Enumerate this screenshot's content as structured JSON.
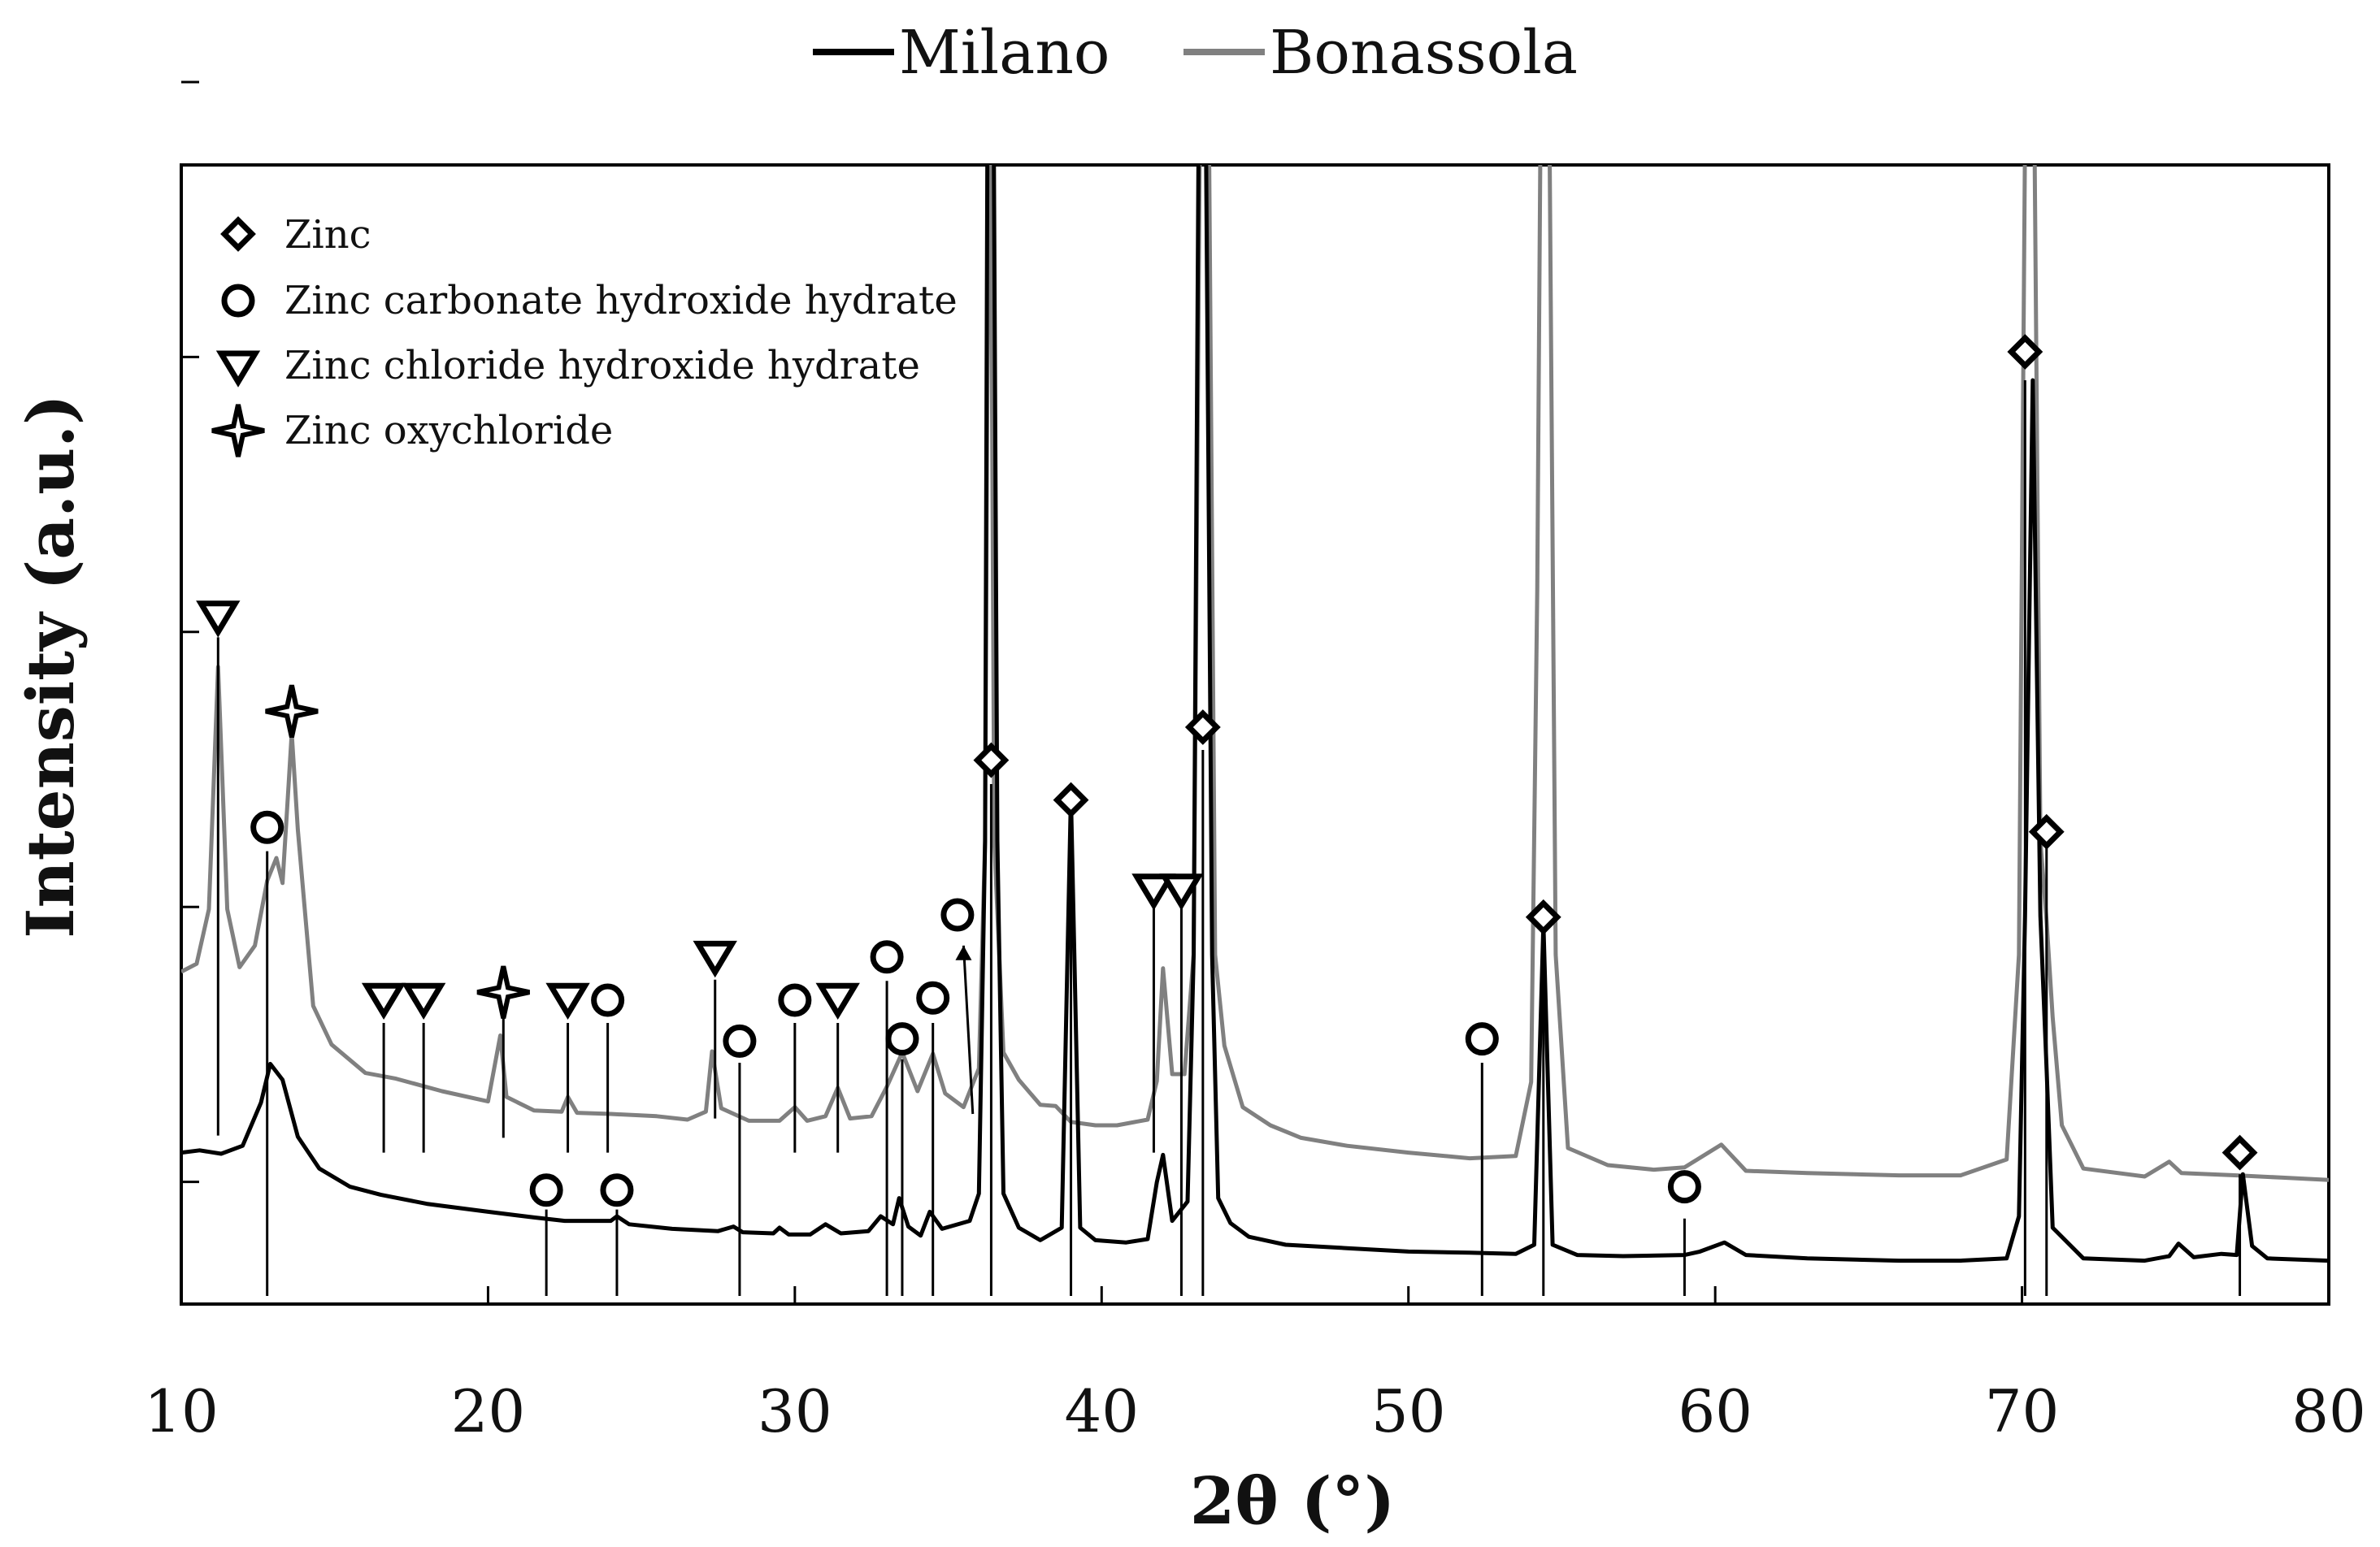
{
  "chart_data": {
    "type": "line",
    "title": "",
    "xlabel": "2θ (°)",
    "ylabel": "Intensity (a.u.)",
    "xlim": [
      10,
      80
    ],
    "ylim": [
      0,
      100
    ],
    "xticks": [
      10,
      20,
      30,
      40,
      50,
      60,
      70,
      80
    ],
    "series_legend": {
      "position": "top-center"
    },
    "series": [
      {
        "name": "Milano",
        "color": "#000000",
        "points": [
          [
            10,
            12.6
          ],
          [
            10.6,
            12.8
          ],
          [
            11.3,
            12.5
          ],
          [
            12.0,
            13.2
          ],
          [
            12.6,
            17
          ],
          [
            12.9,
            20.4
          ],
          [
            13.3,
            19
          ],
          [
            13.8,
            14
          ],
          [
            14.5,
            11.2
          ],
          [
            15.5,
            9.6
          ],
          [
            16.5,
            8.9
          ],
          [
            18,
            8.1
          ],
          [
            20,
            7.4
          ],
          [
            21.5,
            6.9
          ],
          [
            22.5,
            6.6
          ],
          [
            24,
            6.6
          ],
          [
            24.2,
            7.0
          ],
          [
            24.6,
            6.3
          ],
          [
            26,
            5.9
          ],
          [
            27.5,
            5.7
          ],
          [
            28,
            6.1
          ],
          [
            28.3,
            5.6
          ],
          [
            29.3,
            5.5
          ],
          [
            29.5,
            6.0
          ],
          [
            29.8,
            5.4
          ],
          [
            30.5,
            5.4
          ],
          [
            31,
            6.3
          ],
          [
            31.5,
            5.5
          ],
          [
            32.4,
            5.7
          ],
          [
            32.8,
            7.0
          ],
          [
            33.2,
            6.3
          ],
          [
            33.4,
            8.6
          ],
          [
            33.7,
            6.1
          ],
          [
            34.1,
            5.3
          ],
          [
            34.4,
            7.4
          ],
          [
            34.8,
            5.9
          ],
          [
            35.7,
            6.6
          ],
          [
            36.0,
            9
          ],
          [
            36.2,
            40
          ],
          [
            36.3,
            120
          ],
          [
            36.45,
            120
          ],
          [
            36.6,
            40
          ],
          [
            36.8,
            9
          ],
          [
            37.3,
            6.0
          ],
          [
            38.0,
            4.9
          ],
          [
            38.7,
            6.0
          ],
          [
            39.0,
            44.0
          ],
          [
            39.3,
            6.0
          ],
          [
            39.8,
            4.9
          ],
          [
            40.8,
            4.7
          ],
          [
            41.5,
            5.0
          ],
          [
            41.8,
            10.0
          ],
          [
            42.0,
            12.4
          ],
          [
            42.3,
            6.6
          ],
          [
            42.8,
            8.3
          ],
          [
            43.0,
            30
          ],
          [
            43.2,
            120
          ],
          [
            43.35,
            120
          ],
          [
            43.6,
            30
          ],
          [
            43.8,
            8.6
          ],
          [
            44.2,
            6.4
          ],
          [
            44.8,
            5.2
          ],
          [
            46,
            4.5
          ],
          [
            48,
            4.2
          ],
          [
            50,
            3.9
          ],
          [
            52,
            3.8
          ],
          [
            53.5,
            3.7
          ],
          [
            54.1,
            4.5
          ],
          [
            54.4,
            32.7
          ],
          [
            54.7,
            4.5
          ],
          [
            55.5,
            3.6
          ],
          [
            57,
            3.5
          ],
          [
            59,
            3.6
          ],
          [
            59.5,
            3.9
          ],
          [
            60.3,
            4.7
          ],
          [
            61,
            3.6
          ],
          [
            63,
            3.3
          ],
          [
            66,
            3.1
          ],
          [
            68,
            3.1
          ],
          [
            69.5,
            3.3
          ],
          [
            69.9,
            7
          ],
          [
            70.1,
            33.4
          ],
          [
            70.35,
            80.5
          ],
          [
            70.6,
            33.4
          ],
          [
            70.8,
            20
          ],
          [
            71.0,
            6
          ],
          [
            72,
            3.3
          ],
          [
            74,
            3.1
          ],
          [
            74.8,
            3.5
          ],
          [
            75.1,
            4.6
          ],
          [
            75.6,
            3.4
          ],
          [
            76.5,
            3.7
          ],
          [
            77.0,
            3.6
          ],
          [
            77.2,
            10.7
          ],
          [
            77.5,
            4.4
          ],
          [
            78,
            3.3
          ],
          [
            80,
            3.1
          ]
        ]
      },
      {
        "name": "Bonassola",
        "color": "#808080",
        "points": [
          [
            10,
            28.5
          ],
          [
            10.5,
            29.2
          ],
          [
            10.9,
            34
          ],
          [
            11.2,
            55.3
          ],
          [
            11.5,
            34
          ],
          [
            11.9,
            28.9
          ],
          [
            12.4,
            30.8
          ],
          [
            12.8,
            36.5
          ],
          [
            13.1,
            38.5
          ],
          [
            13.3,
            36.3
          ],
          [
            13.5,
            45
          ],
          [
            13.6,
            49.5
          ],
          [
            13.8,
            41
          ],
          [
            14.3,
            25.5
          ],
          [
            14.9,
            22.1
          ],
          [
            16,
            19.6
          ],
          [
            17,
            19.1
          ],
          [
            18.5,
            18.0
          ],
          [
            20,
            17.1
          ],
          [
            20.4,
            22.9
          ],
          [
            20.6,
            17.5
          ],
          [
            21.5,
            16.3
          ],
          [
            22.4,
            16.2
          ],
          [
            22.6,
            17.5
          ],
          [
            22.9,
            16.1
          ],
          [
            24,
            16.0
          ],
          [
            25.5,
            15.8
          ],
          [
            26.5,
            15.5
          ],
          [
            27.1,
            16.2
          ],
          [
            27.3,
            21.5
          ],
          [
            27.6,
            16.5
          ],
          [
            28.5,
            15.4
          ],
          [
            29.5,
            15.4
          ],
          [
            30,
            16.6
          ],
          [
            30.4,
            15.4
          ],
          [
            31,
            15.8
          ],
          [
            31.4,
            18.3
          ],
          [
            31.8,
            15.6
          ],
          [
            32.5,
            15.8
          ],
          [
            33,
            18.4
          ],
          [
            33.5,
            21.4
          ],
          [
            34,
            18.0
          ],
          [
            34.5,
            21.3
          ],
          [
            34.9,
            17.8
          ],
          [
            35.5,
            16.6
          ],
          [
            36.0,
            20
          ],
          [
            36.2,
            40
          ],
          [
            36.35,
            120
          ],
          [
            36.5,
            40
          ],
          [
            36.8,
            21.4
          ],
          [
            37.3,
            19.0
          ],
          [
            38,
            16.8
          ],
          [
            38.5,
            16.7
          ],
          [
            39,
            15.3
          ],
          [
            39.8,
            15.0
          ],
          [
            40.5,
            15.0
          ],
          [
            41.5,
            15.5
          ],
          [
            41.8,
            18.9
          ],
          [
            42.0,
            28.8
          ],
          [
            42.3,
            19.5
          ],
          [
            42.7,
            19.5
          ],
          [
            43.0,
            30
          ],
          [
            43.25,
            120
          ],
          [
            43.45,
            120
          ],
          [
            43.7,
            30
          ],
          [
            44,
            22
          ],
          [
            44.6,
            16.6
          ],
          [
            45.5,
            15.0
          ],
          [
            46.5,
            13.9
          ],
          [
            48,
            13.2
          ],
          [
            50,
            12.6
          ],
          [
            52,
            12.1
          ],
          [
            53.5,
            12.3
          ],
          [
            54.0,
            18.8
          ],
          [
            54.2,
            62
          ],
          [
            54.35,
            120
          ],
          [
            54.55,
            120
          ],
          [
            54.8,
            30
          ],
          [
            55.2,
            13
          ],
          [
            56.5,
            11.5
          ],
          [
            58,
            11.1
          ],
          [
            59,
            11.3
          ],
          [
            60.2,
            13.3
          ],
          [
            61,
            11.0
          ],
          [
            63,
            10.8
          ],
          [
            66,
            10.6
          ],
          [
            68,
            10.6
          ],
          [
            69.5,
            12
          ],
          [
            69.9,
            30
          ],
          [
            70.15,
            120
          ],
          [
            70.35,
            120
          ],
          [
            70.6,
            40
          ],
          [
            70.8,
            33
          ],
          [
            71.0,
            24.5
          ],
          [
            71.3,
            15
          ],
          [
            72,
            11.2
          ],
          [
            74,
            10.5
          ],
          [
            74.8,
            11.8
          ],
          [
            75.2,
            10.8
          ],
          [
            77,
            10.6
          ],
          [
            78.5,
            10.4
          ],
          [
            80,
            10.2
          ]
        ]
      }
    ],
    "phase_legend": [
      {
        "marker": "diamond",
        "label": "Zinc"
      },
      {
        "marker": "circle",
        "label": "Zinc carbonate hydroxide hydrate"
      },
      {
        "marker": "triangle-down",
        "label": "Zinc chloride hydroxide hydrate"
      },
      {
        "marker": "star4",
        "label": "Zinc oxychloride"
      }
    ],
    "annotations": [
      {
        "marker": "triangle-down",
        "x": 11.2,
        "line_from": 14.1,
        "line_to": 57.9,
        "icon_y": 59.8
      },
      {
        "marker": "star4",
        "x": 13.6,
        "icon_y": 51.4
      },
      {
        "marker": "circle",
        "x": 12.8,
        "line_from": 0,
        "line_to": 39.1,
        "icon_y": 41.2
      },
      {
        "marker": "triangle-down",
        "x": 16.6,
        "line_from": 12.6,
        "line_to": 24.0,
        "icon_y": 26.2
      },
      {
        "marker": "triangle-down",
        "x": 17.9,
        "line_from": 12.6,
        "line_to": 24.0,
        "icon_y": 26.2
      },
      {
        "marker": "star4",
        "x": 20.5,
        "line_from": 13.9,
        "line_to": 24.4,
        "icon_y": 26.7
      },
      {
        "marker": "triangle-down",
        "x": 22.6,
        "line_from": 12.6,
        "line_to": 24.0,
        "icon_y": 26.2
      },
      {
        "marker": "circle",
        "x": 23.9,
        "line_from": 12.6,
        "line_to": 24.0,
        "icon_y": 26.0
      },
      {
        "marker": "circle",
        "x": 21.9,
        "line_from": 0,
        "line_to": 7.6,
        "icon_y": 9.3
      },
      {
        "marker": "circle",
        "x": 24.2,
        "line_from": 0,
        "line_to": 7.6,
        "icon_y": 9.3
      },
      {
        "marker": "triangle-down",
        "x": 27.4,
        "line_from": 15.6,
        "line_to": 27.8,
        "icon_y": 29.9
      },
      {
        "marker": "circle",
        "x": 28.2,
        "line_from": 0,
        "line_to": 20.5,
        "icon_y": 22.4
      },
      {
        "marker": "circle",
        "x": 30.0,
        "line_from": 12.6,
        "line_to": 24.0,
        "icon_y": 26.0
      },
      {
        "marker": "triangle-down",
        "x": 31.4,
        "line_from": 12.6,
        "line_to": 24.0,
        "icon_y": 26.2
      },
      {
        "marker": "circle",
        "x": 33.0,
        "line_from": 0,
        "line_to": 27.7,
        "icon_y": 29.8
      },
      {
        "marker": "circle",
        "x": 33.5,
        "line_from": 0,
        "line_to": 20.8,
        "icon_y": 22.6
      },
      {
        "marker": "circle",
        "x": 34.5,
        "line_from": 0,
        "line_to": 24.0,
        "icon_y": 26.2
      },
      {
        "marker": "circle",
        "x": 35.3,
        "arrow_from": [
          35.8,
          16.0
        ],
        "arrow_to": [
          35.5,
          30.8
        ],
        "icon_y": 33.5
      },
      {
        "marker": "diamond",
        "x": 36.4,
        "line_from": 0,
        "line_to": 45.0,
        "icon_y": 47.1
      },
      {
        "marker": "diamond",
        "x": 39.0,
        "line_from": 0,
        "line_to": 44.0,
        "icon_y": 43.6
      },
      {
        "marker": "triangle-down",
        "x": 41.7,
        "line_from": 12.6,
        "line_to": 34.7,
        "icon_y": 35.8
      },
      {
        "marker": "triangle-down",
        "x": 42.6,
        "line_from": 0,
        "line_to": 34.7,
        "icon_y": 35.8
      },
      {
        "marker": "diamond",
        "x": 43.3,
        "line_from": 0,
        "line_to": 48.0,
        "icon_y": 50.0
      },
      {
        "marker": "diamond",
        "x": 54.4,
        "line_from": 0,
        "line_to": 31.5,
        "icon_y": 33.3
      },
      {
        "marker": "circle",
        "x": 52.4,
        "line_from": 0,
        "line_to": 20.5,
        "icon_y": 22.6
      },
      {
        "marker": "circle",
        "x": 59.0,
        "line_from": 0,
        "line_to": 6.8,
        "icon_y": 9.6
      },
      {
        "marker": "diamond",
        "x": 70.1,
        "line_from": 0,
        "line_to": 80.5,
        "icon_y": 83.0
      },
      {
        "marker": "diamond",
        "x": 70.8,
        "line_from": 0,
        "line_to": 40.0,
        "icon_y": 40.8
      },
      {
        "marker": "diamond",
        "x": 77.1,
        "line_from": 0,
        "line_to": 10.7,
        "icon_y": 12.6
      }
    ]
  }
}
